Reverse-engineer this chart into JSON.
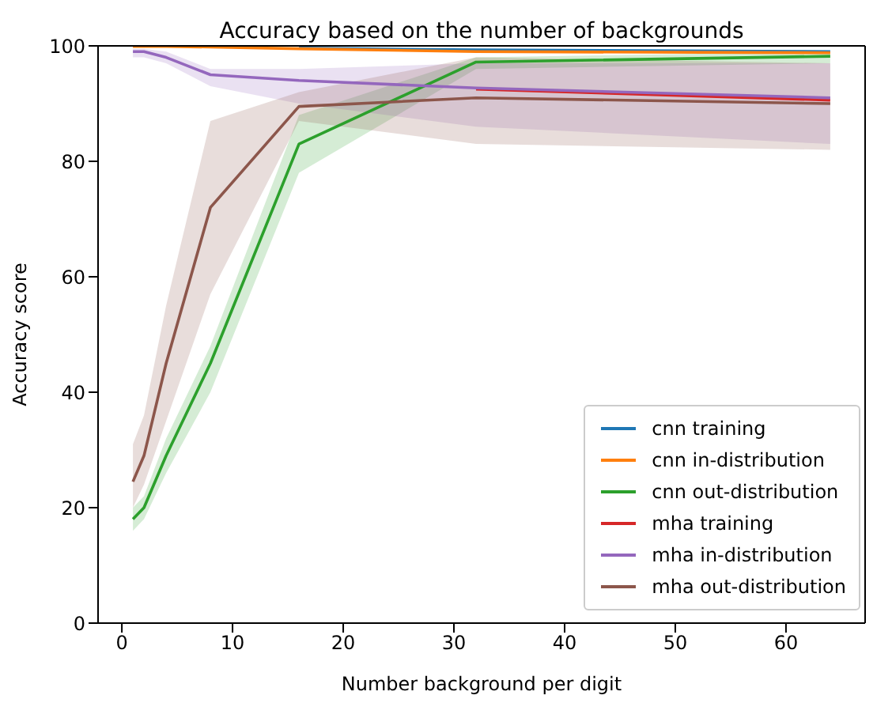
{
  "chart_data": {
    "type": "line",
    "title": "Accuracy based on the number of backgrounds",
    "xlabel": "Number background per digit",
    "ylabel": "Accuracy score",
    "x": [
      1,
      2,
      4,
      8,
      16,
      32,
      64
    ],
    "xlim": [
      -2.15,
      67.15
    ],
    "xticks": [
      0,
      10,
      20,
      30,
      40,
      50,
      60
    ],
    "ylim": [
      0,
      100
    ],
    "yticks": [
      0,
      20,
      40,
      60,
      80,
      100
    ],
    "legend": "bottom right",
    "grid": false,
    "series": [
      {
        "name": "cnn training",
        "color": "#1f77b4",
        "values": [
          null,
          null,
          null,
          null,
          99.6,
          99.3,
          99.0
        ]
      },
      {
        "name": "cnn in-distribution",
        "color": "#ff7f0e",
        "values": [
          99.9,
          99.9,
          99.9,
          99.8,
          99.5,
          99.0,
          98.8
        ]
      },
      {
        "name": "cnn out-distribution",
        "color": "#2ca02c",
        "values": [
          18,
          20,
          29,
          45,
          83,
          97.2,
          98.2
        ],
        "lower": [
          16,
          18,
          26,
          40,
          78,
          96,
          97
        ],
        "upper": [
          20,
          22,
          32,
          48,
          88,
          98,
          99
        ]
      },
      {
        "name": "mha training",
        "color": "#d62728",
        "values": [
          null,
          null,
          null,
          null,
          null,
          92.5,
          90.6
        ]
      },
      {
        "name": "mha in-distribution",
        "color": "#9467bd",
        "values": [
          99,
          99,
          98,
          95,
          94,
          92.7,
          91
        ],
        "lower": [
          98,
          98,
          97,
          93,
          90,
          86,
          83
        ],
        "upper": [
          99.5,
          99.5,
          99,
          96,
          96,
          97,
          97
        ]
      },
      {
        "name": "mha out-distribution",
        "color": "#8c564b",
        "values": [
          24.5,
          29,
          45,
          72,
          89.5,
          91,
          90
        ],
        "lower": [
          20,
          24,
          35,
          57,
          87,
          83,
          82
        ],
        "upper": [
          31,
          36,
          55,
          87,
          92,
          98,
          97
        ]
      }
    ]
  }
}
